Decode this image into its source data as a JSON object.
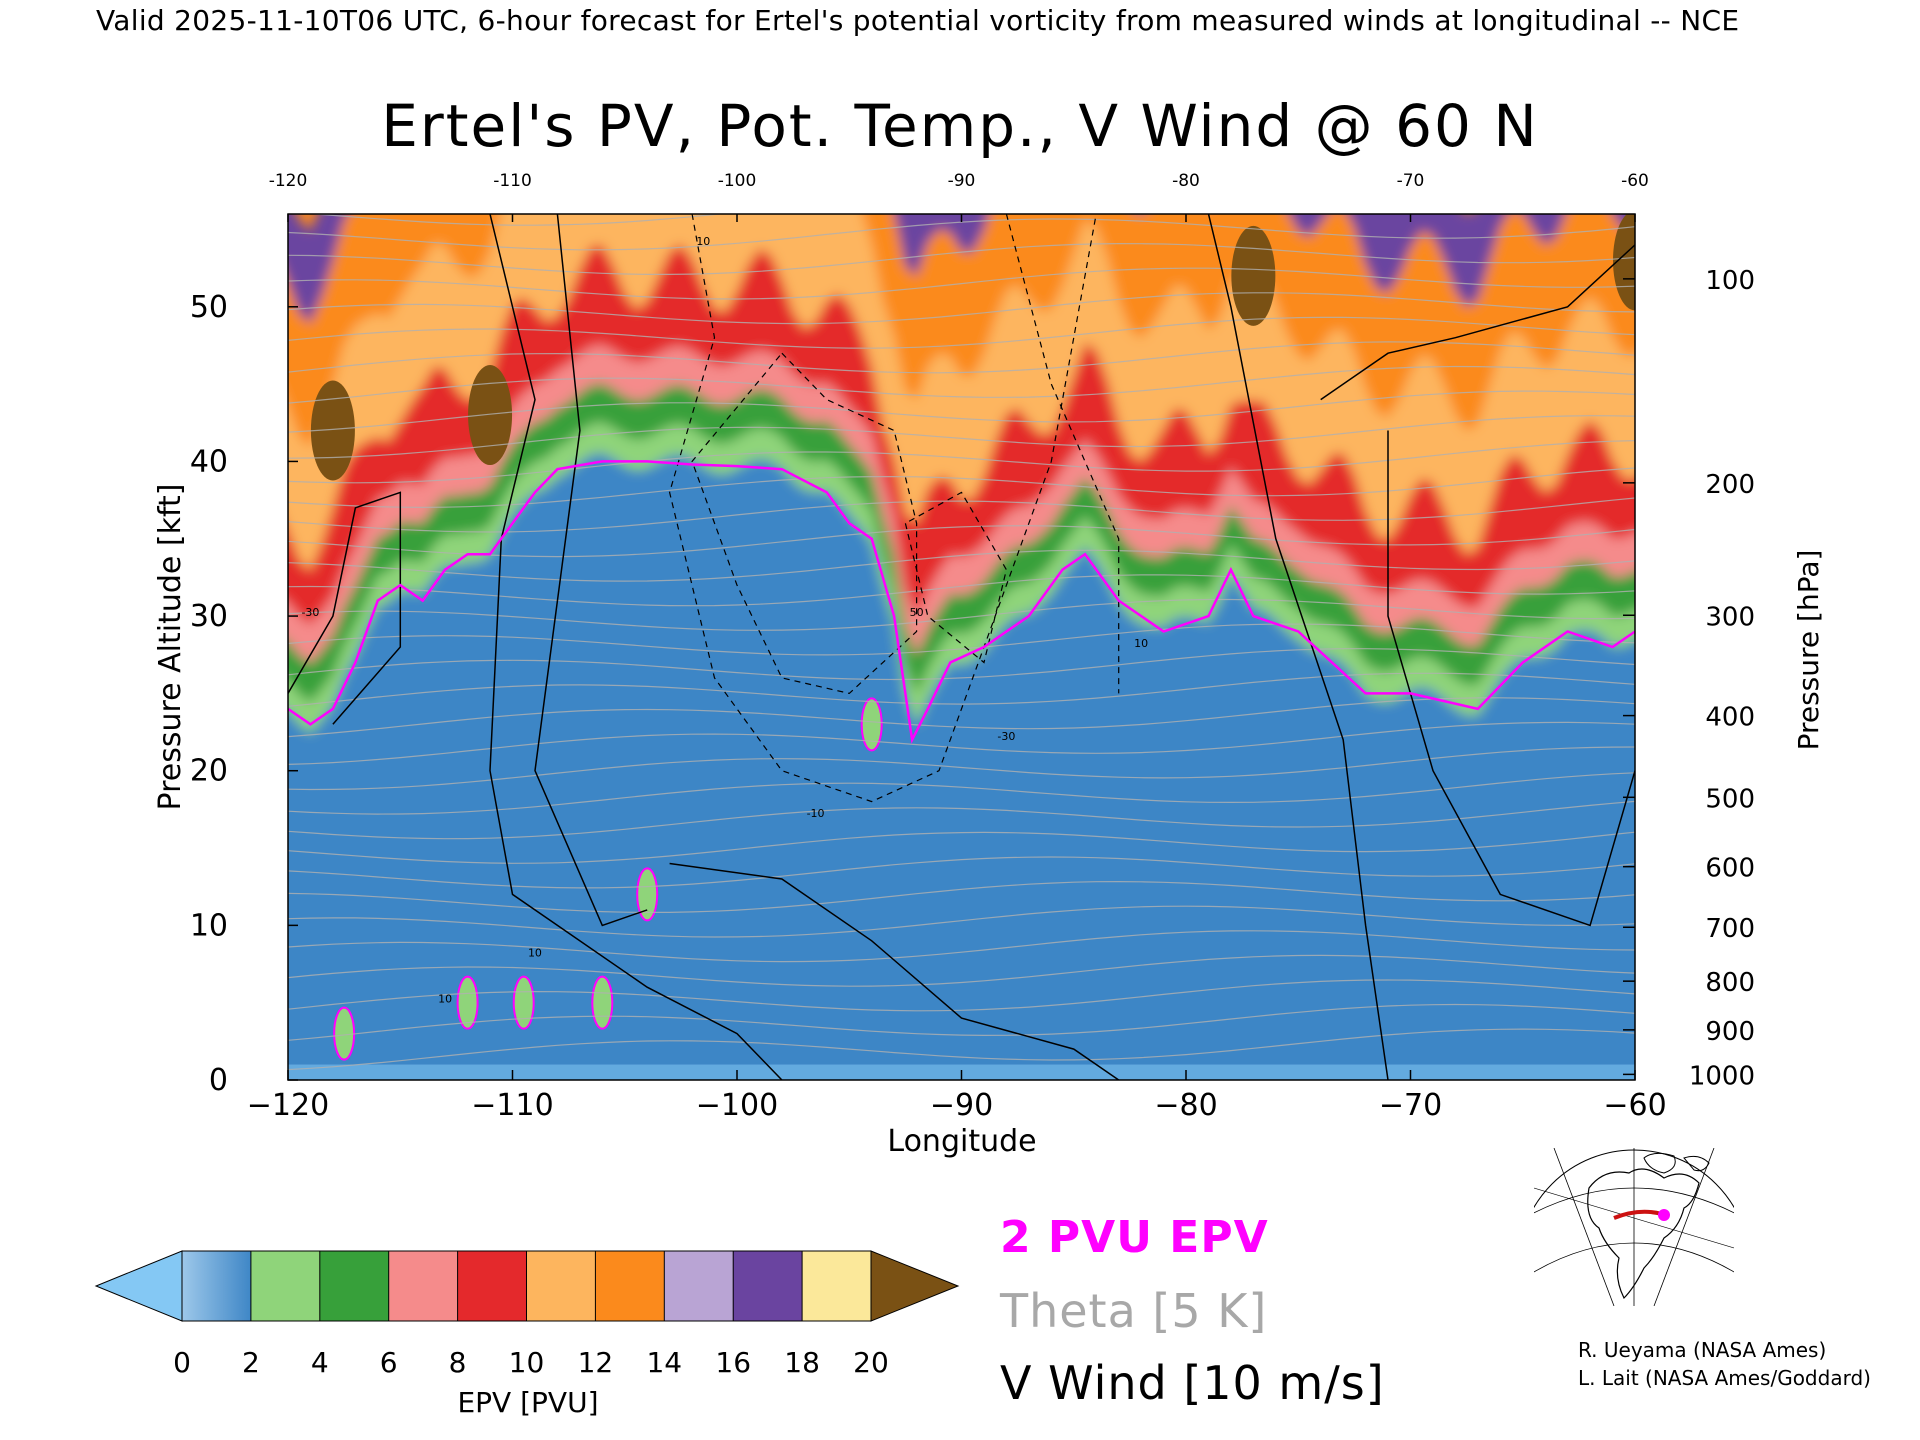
{
  "header": {
    "text": "Valid 2025-11-10T06 UTC, 6-hour forecast for Ertel's potential vorticity from measured winds at longitudinal -- NCE"
  },
  "chart_data": {
    "type": "heatmap",
    "title": "Ertel's PV, Pot. Temp., V Wind @ 60 N",
    "xlabel": "Longitude",
    "ylabel": "Pressure Altitude [kft]",
    "y2label": "Pressure [hPa]",
    "xlim": [
      -120,
      -60
    ],
    "ylim": [
      0,
      56
    ],
    "x_ticks": [
      -120,
      -110,
      -100,
      -90,
      -80,
      -70,
      -60
    ],
    "x_tick_labels": [
      "−120",
      "−110",
      "−100",
      "−90",
      "−80",
      "−70",
      "−60"
    ],
    "y_ticks": [
      0,
      10,
      20,
      30,
      40,
      50
    ],
    "y_tick_labels": [
      "0",
      "10",
      "20",
      "30",
      "40",
      "50"
    ],
    "pressure_axis": [
      {
        "hpa": 100,
        "label": "100"
      },
      {
        "hpa": 200,
        "label": "200"
      },
      {
        "hpa": 300,
        "label": "300"
      },
      {
        "hpa": 400,
        "label": "400"
      },
      {
        "hpa": 500,
        "label": "500"
      },
      {
        "hpa": 600,
        "label": "600"
      },
      {
        "hpa": 700,
        "label": "700"
      },
      {
        "hpa": 800,
        "label": "800"
      },
      {
        "hpa": 900,
        "label": "900"
      },
      {
        "hpa": 1000,
        "label": "1000"
      }
    ],
    "tropopause_2pvu_kft": [
      [
        -120,
        24
      ],
      [
        -119,
        23
      ],
      [
        -118,
        24
      ],
      [
        -117,
        27
      ],
      [
        -116,
        31
      ],
      [
        -115,
        32
      ],
      [
        -114,
        31
      ],
      [
        -113,
        33
      ],
      [
        -112,
        34
      ],
      [
        -111,
        34
      ],
      [
        -110,
        36
      ],
      [
        -109,
        38
      ],
      [
        -108,
        39.5
      ],
      [
        -106,
        40
      ],
      [
        -104,
        40
      ],
      [
        -102,
        39.8
      ],
      [
        -100,
        39.7
      ],
      [
        -98,
        39.5
      ],
      [
        -96,
        38
      ],
      [
        -95,
        36
      ],
      [
        -94,
        35
      ],
      [
        -93,
        30
      ],
      [
        -92.2,
        22
      ],
      [
        -91.5,
        24
      ],
      [
        -90.5,
        27
      ],
      [
        -89,
        28
      ],
      [
        -87,
        30
      ],
      [
        -85.5,
        33
      ],
      [
        -84.5,
        34
      ],
      [
        -83,
        31
      ],
      [
        -81,
        29
      ],
      [
        -79,
        30
      ],
      [
        -78,
        33
      ],
      [
        -77,
        30
      ],
      [
        -75,
        29
      ],
      [
        -72,
        25
      ],
      [
        -70,
        25
      ],
      [
        -67,
        24
      ],
      [
        -65,
        27
      ],
      [
        -63,
        29
      ],
      [
        -61,
        28
      ],
      [
        -60,
        29
      ]
    ],
    "vwind_contour_labels": [
      {
        "x": -119,
        "y": 30,
        "text": "-30"
      },
      {
        "x": -92,
        "y": 30,
        "text": "50"
      },
      {
        "x": -88,
        "y": 22,
        "text": "-30"
      },
      {
        "x": -96.5,
        "y": 17,
        "text": "-10"
      },
      {
        "x": -113,
        "y": 5,
        "text": "10"
      },
      {
        "x": -109,
        "y": 8,
        "text": "10"
      },
      {
        "x": -82,
        "y": 28,
        "text": "10"
      },
      {
        "x": -101.5,
        "y": 54,
        "text": "10"
      }
    ],
    "colorbar": {
      "label": "EPV [PVU]",
      "ticks": [
        "0",
        "2",
        "4",
        "6",
        "8",
        "10",
        "12",
        "14",
        "16",
        "18",
        "20"
      ],
      "colors": [
        "#3e86c6",
        "#8fd47a",
        "#37a03a",
        "#f58b8b",
        "#e4292c",
        "#fdb55e",
        "#fb8a1c",
        "#b9a4d4",
        "#6a44a0",
        "#fbe89a"
      ],
      "under_color": "#84c8f4",
      "over_color": "#7a5114"
    },
    "legend": {
      "epv": "2 PVU EPV",
      "theta": "Theta [5 K]",
      "vwind": "V Wind [10 m/s]",
      "epv_color": "#ff00ff",
      "theta_color": "#a8a8a8",
      "vwind_color": "#000000"
    }
  },
  "credits": {
    "line1": "R. Ueyama (NASA Ames)",
    "line2": "L. Lait (NASA Ames/Goddard)"
  }
}
